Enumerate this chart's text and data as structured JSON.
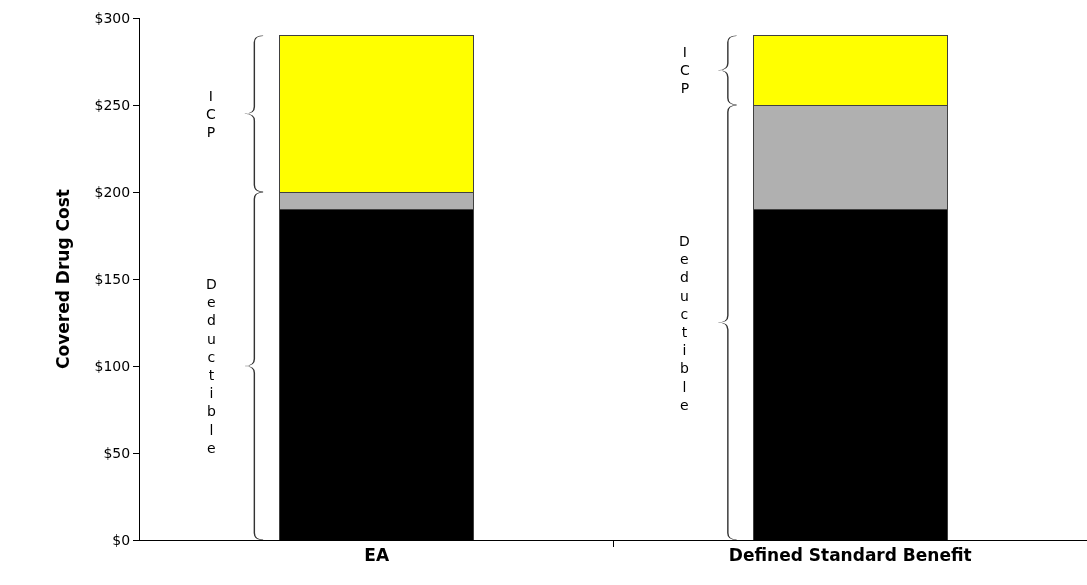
{
  "chart_data": {
    "type": "bar",
    "stacked": true,
    "ylabel": "Covered Drug Cost",
    "categories": [
      "EA",
      "Defined Standard Benefit"
    ],
    "series": [
      {
        "color": "#000000",
        "values": [
          190,
          190
        ]
      },
      {
        "color": "#b0b0b0",
        "values": [
          10,
          60
        ]
      },
      {
        "color": "#ffff00",
        "values": [
          90,
          40
        ]
      }
    ],
    "ylim": [
      0,
      300
    ],
    "yticks": [
      {
        "value": 0,
        "label": "$0"
      },
      {
        "value": 50,
        "label": "$50"
      },
      {
        "value": 100,
        "label": "$100"
      },
      {
        "value": 150,
        "label": "$150"
      },
      {
        "value": 200,
        "label": "$200"
      },
      {
        "value": 250,
        "label": "$250"
      },
      {
        "value": 300,
        "label": "$300"
      }
    ],
    "annotations": [
      "ICP",
      "Deductible",
      "ICP",
      "Deductible"
    ]
  }
}
